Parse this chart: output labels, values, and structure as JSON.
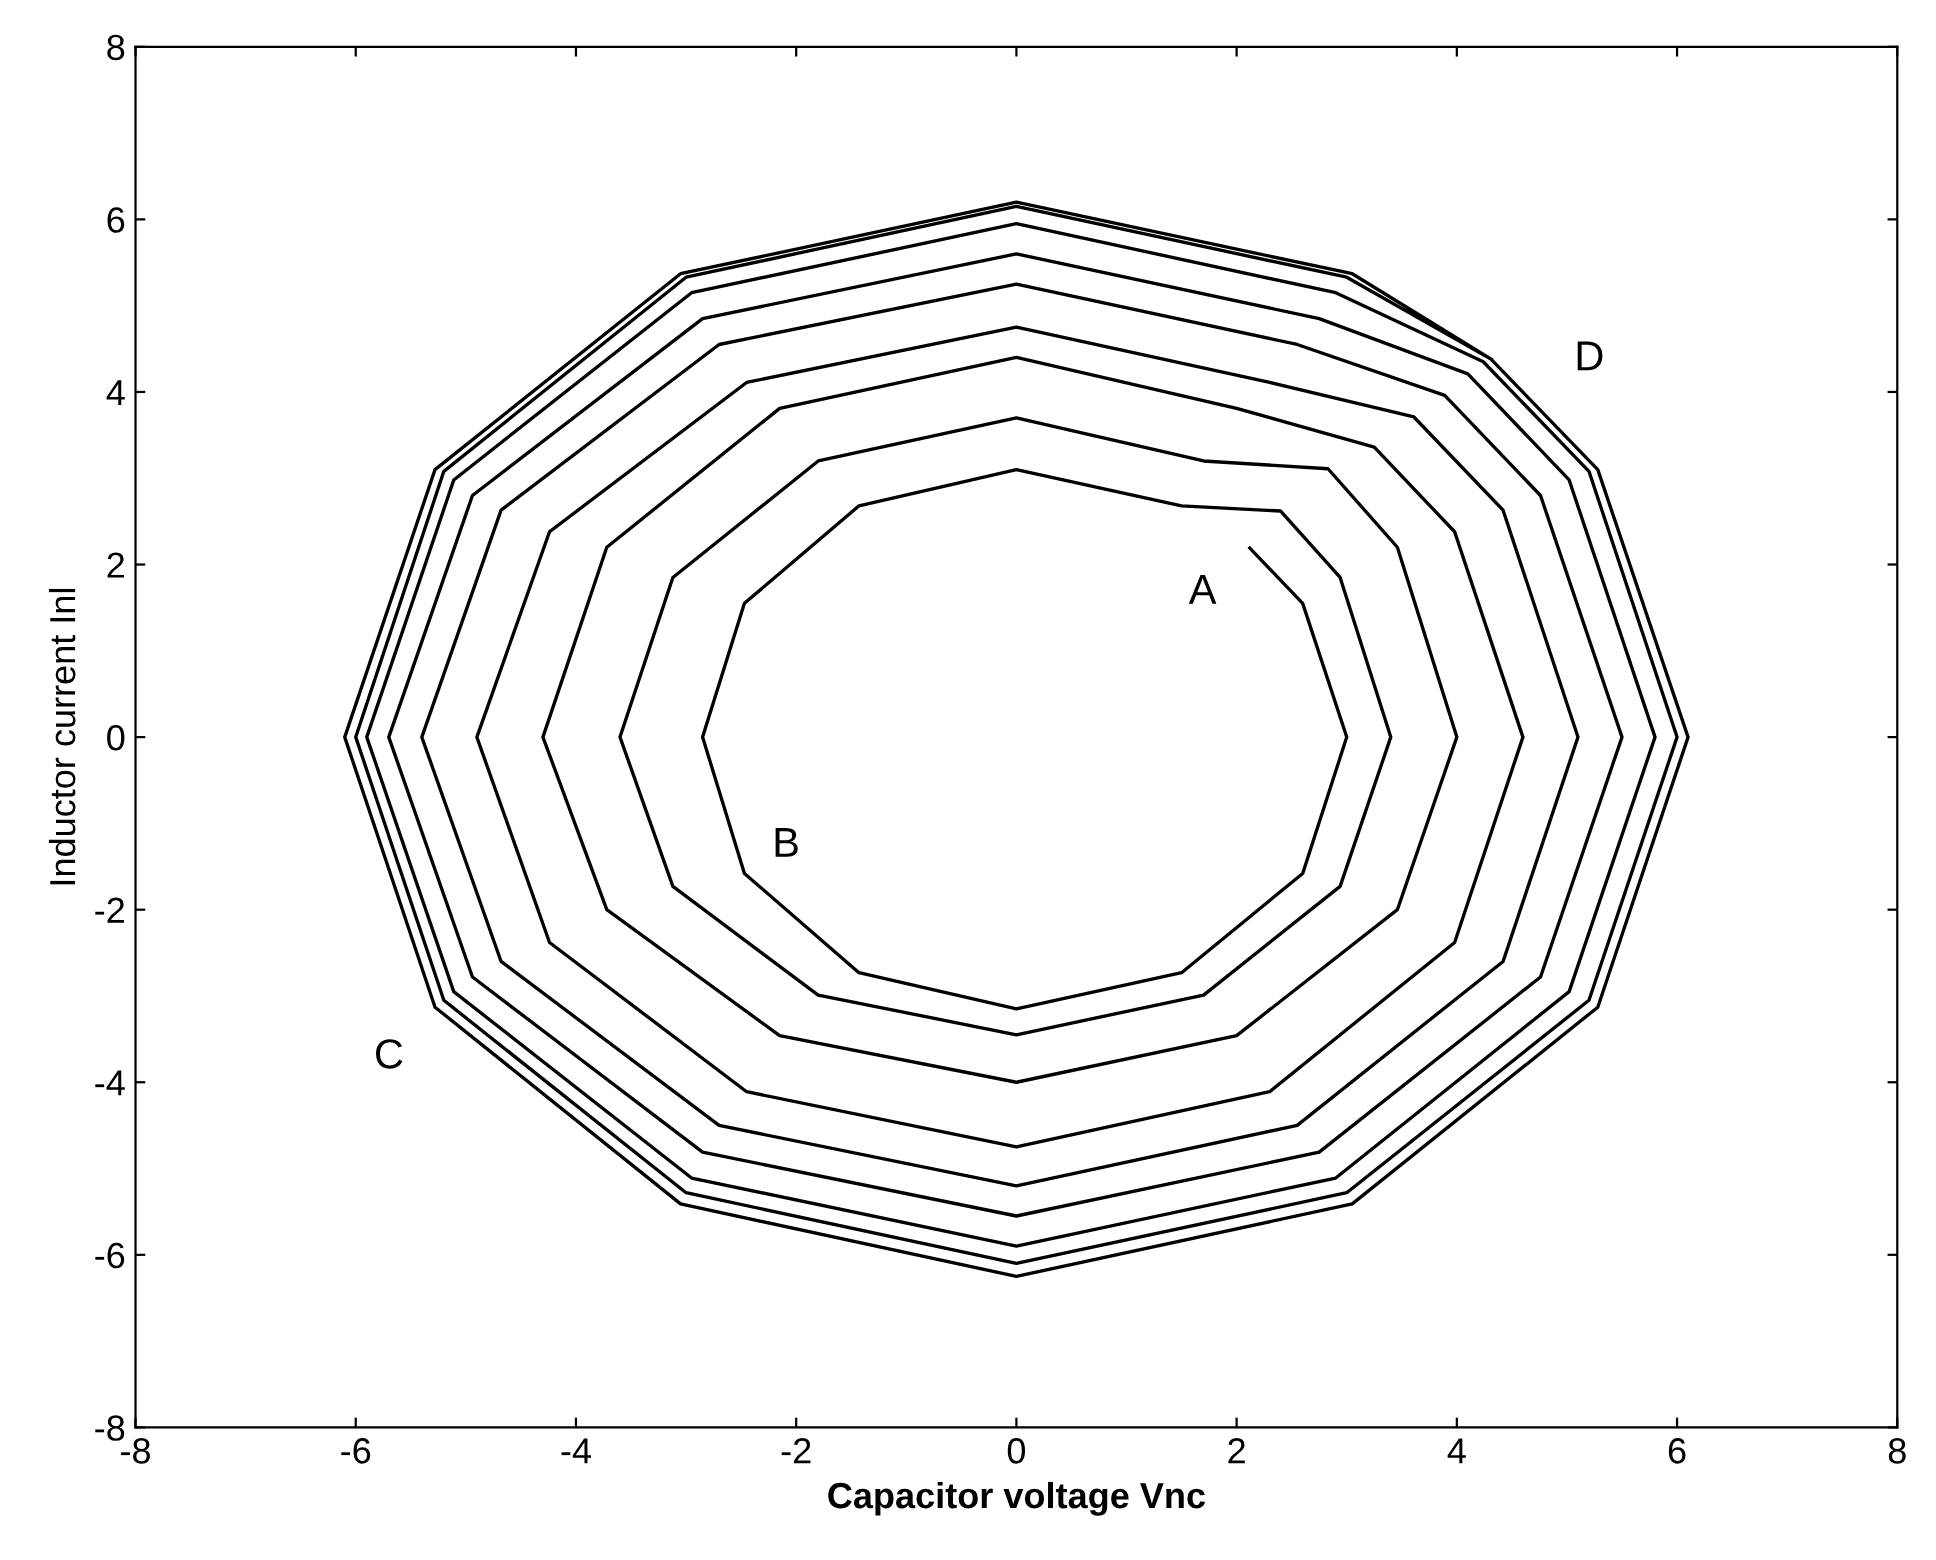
{
  "chart_data": {
    "type": "line",
    "xlabel": "Capacitor voltage Vnc",
    "ylabel": "Inductor current Inl",
    "xlim": [
      -8,
      8
    ],
    "ylim": [
      -8,
      8
    ],
    "xticks": [
      -8,
      -6,
      -4,
      -2,
      0,
      2,
      4,
      6,
      8
    ],
    "yticks": [
      -8,
      -6,
      -4,
      -2,
      0,
      2,
      4,
      6,
      8
    ],
    "grid": false,
    "legend": false,
    "marker": "none",
    "line_style": "solid",
    "annotations": [
      {
        "text": "A",
        "x": 2.12,
        "y": 2.19
      },
      {
        "text": "B",
        "x": -2.47,
        "y": -1.58
      },
      {
        "text": "C",
        "x": -5.28,
        "y": -3.13
      },
      {
        "text": "D",
        "x": 4.31,
        "y": 4.38
      }
    ],
    "series": [
      {
        "color": "#000000",
        "x": [
          2.12,
          2.6,
          3.0,
          2.6,
          1.5,
          0,
          -1.43,
          -2.47,
          -2.85,
          -2.47,
          -1.43,
          0,
          1.5,
          2.4,
          2.94,
          3.4,
          2.94,
          1.7,
          0,
          -1.8,
          -3.12,
          -3.6,
          -3.12,
          -1.8,
          0,
          1.7,
          2.83,
          3.46,
          4.0,
          3.46,
          2.0,
          0,
          -2.15,
          -3.72,
          -4.3,
          -3.72,
          -2.15,
          0,
          2.0,
          3.25,
          3.98,
          4.6,
          3.98,
          2.3,
          0,
          -2.45,
          -4.24,
          -4.9,
          -4.24,
          -2.45,
          0,
          2.3,
          3.61,
          4.42,
          5.1,
          4.42,
          2.55,
          0,
          -2.7,
          -4.68,
          -5.4,
          -4.68,
          -2.7,
          0,
          2.55,
          3.89,
          4.76,
          5.5,
          4.76,
          2.75,
          0,
          -2.85,
          -4.94,
          -5.7,
          -4.94,
          -2.85,
          0,
          2.75,
          4.1,
          5.02,
          5.8,
          5.02,
          2.9,
          0,
          -2.95,
          -5.11,
          -5.9,
          -5.11,
          -2.95,
          0,
          2.9,
          4.24,
          5.2,
          6.0,
          5.2,
          3.0,
          0,
          -3.0,
          -5.2,
          -6.0,
          -5.2,
          -3.0,
          0,
          3.0,
          4.31,
          5.28,
          6.1,
          5.28,
          3.05,
          0,
          -3.05,
          -5.28,
          -6.1,
          -5.28,
          -3.05,
          0,
          3.05,
          4.31
        ],
        "values": [
          2.19,
          1.55,
          0,
          -1.58,
          -2.73,
          -3.15,
          -2.73,
          -1.58,
          0,
          1.55,
          2.68,
          3.1,
          2.68,
          2.62,
          1.85,
          0,
          -1.73,
          -2.99,
          -3.45,
          -2.99,
          -1.73,
          0,
          1.85,
          3.2,
          3.7,
          3.2,
          3.11,
          2.2,
          0,
          -2.0,
          -3.46,
          -4.0,
          -3.46,
          -2.0,
          0,
          2.2,
          3.81,
          4.4,
          3.81,
          3.36,
          2.38,
          0,
          -2.38,
          -4.11,
          -4.75,
          -4.11,
          -2.38,
          0,
          2.38,
          4.11,
          4.75,
          4.11,
          3.71,
          2.63,
          0,
          -2.6,
          -4.5,
          -5.2,
          -4.5,
          -2.6,
          0,
          2.63,
          4.55,
          5.25,
          4.55,
          3.96,
          2.8,
          0,
          -2.78,
          -4.81,
          -5.55,
          -4.81,
          -2.78,
          0,
          2.8,
          4.85,
          5.6,
          4.85,
          4.21,
          2.98,
          0,
          -2.95,
          -5.11,
          -5.9,
          -5.11,
          -2.95,
          0,
          2.98,
          5.15,
          5.95,
          5.15,
          4.35,
          3.08,
          0,
          -3.05,
          -5.28,
          -6.1,
          -5.28,
          -3.05,
          0,
          3.08,
          5.33,
          6.15,
          5.33,
          4.38,
          3.1,
          0,
          -3.13,
          -5.41,
          -6.25,
          -5.41,
          -3.13,
          0,
          3.1,
          5.37,
          6.2,
          5.37,
          4.38
        ]
      }
    ]
  }
}
